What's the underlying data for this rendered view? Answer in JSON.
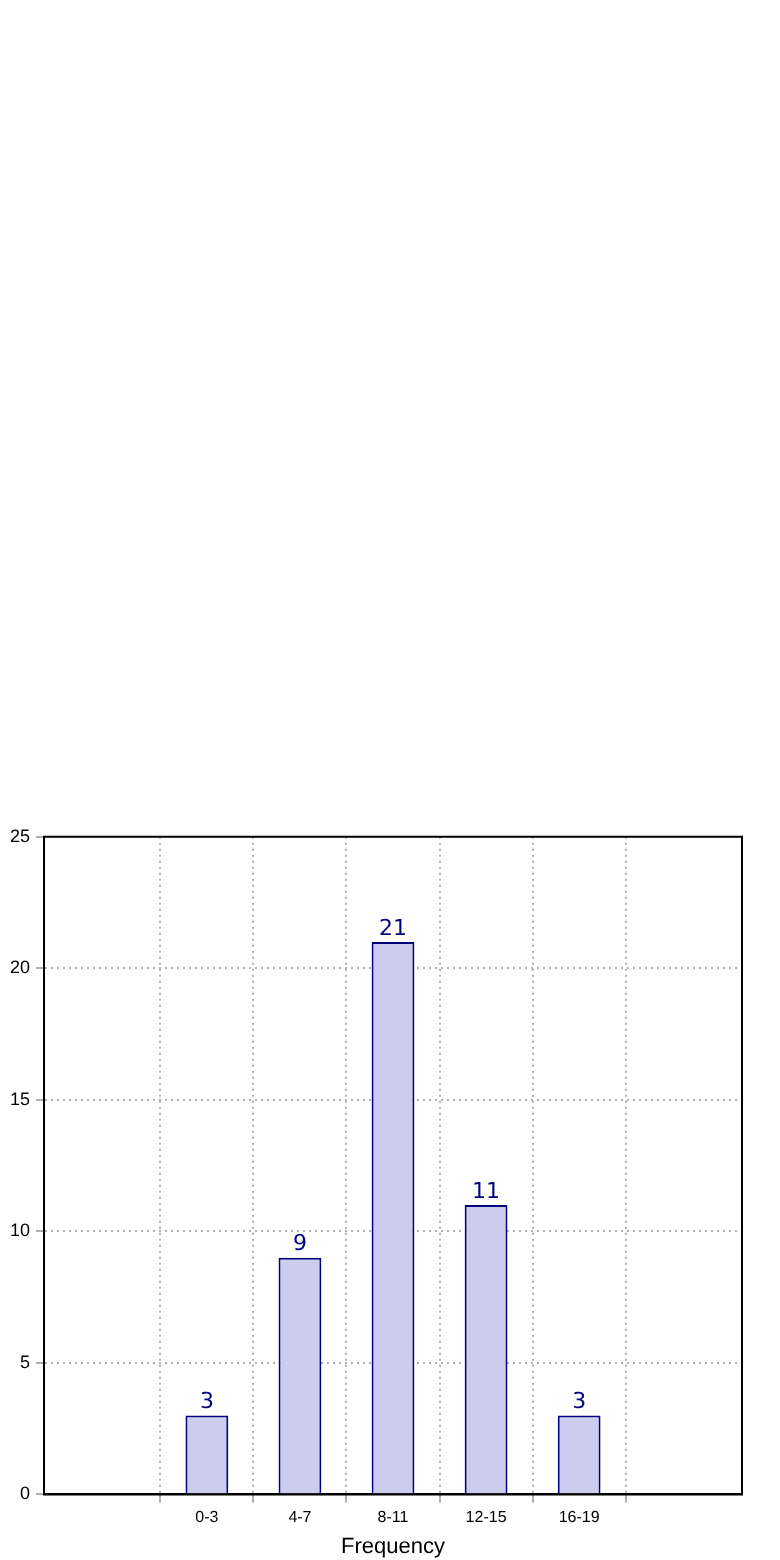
{
  "chart_data": {
    "type": "bar",
    "xlabel": "Frequency",
    "categories": [
      "0-3",
      "4-7",
      "8-11",
      "12-15",
      "16-19"
    ],
    "series": [
      {
        "color": "#ccccee",
        "values": [
          3,
          9,
          21,
          11,
          3
        ]
      }
    ],
    "ylim": [
      0,
      25
    ],
    "yticks": [
      0,
      5,
      10,
      15,
      20,
      25
    ],
    "grid": true,
    "data_labels": true,
    "legend": false
  }
}
